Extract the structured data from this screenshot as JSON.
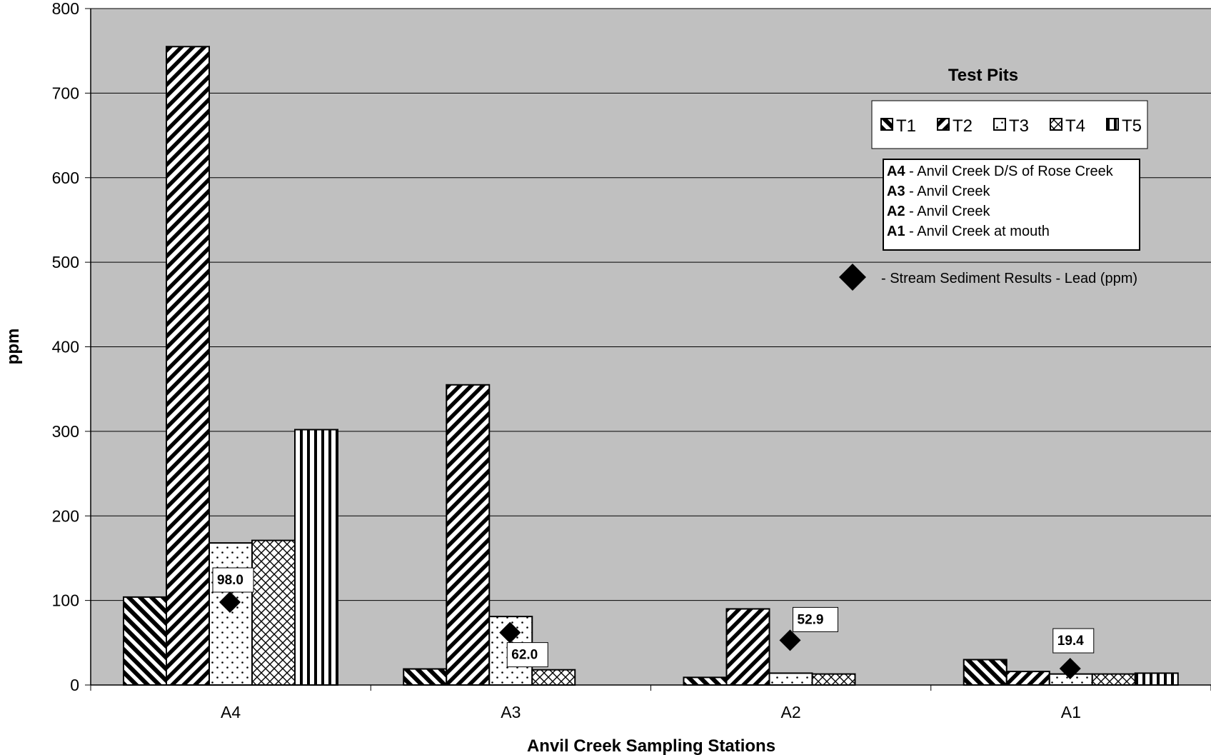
{
  "chart_data": {
    "type": "bar",
    "title": "",
    "xlabel": "Anvil Creek Sampling Stations",
    "ylabel": "ppm",
    "ylim": [
      0,
      800
    ],
    "yticks": [
      0,
      100,
      200,
      300,
      400,
      500,
      600,
      700,
      800
    ],
    "grid": true,
    "categories": [
      "A4",
      "A3",
      "A2",
      "A1"
    ],
    "series": [
      {
        "name": "T1",
        "values": [
          104,
          19,
          9,
          30
        ],
        "pattern": "diag-back"
      },
      {
        "name": "T2",
        "values": [
          755,
          355,
          90,
          16
        ],
        "pattern": "diag-fwd"
      },
      {
        "name": "T3",
        "values": [
          168,
          81,
          14,
          13
        ],
        "pattern": "dots"
      },
      {
        "name": "T4",
        "values": [
          171,
          18,
          13,
          13
        ],
        "pattern": "lattice"
      },
      {
        "name": "T5",
        "values": [
          302,
          null,
          null,
          14
        ],
        "pattern": "vertical"
      }
    ],
    "sediment": {
      "name": "- Stream Sediment Results - Lead (ppm)",
      "values": [
        98.0,
        62.0,
        52.9,
        19.4
      ],
      "labels": [
        "98.0",
        "62.0",
        "52.9",
        "19.4"
      ]
    },
    "legend": {
      "title": "Test Pits",
      "placement": "top-right"
    },
    "stations_key": [
      {
        "code": "A4",
        "desc": " - Anvil Creek D/S of Rose Creek"
      },
      {
        "code": "A3",
        "desc": " - Anvil Creek"
      },
      {
        "code": "A2",
        "desc": " - Anvil Creek"
      },
      {
        "code": "A1",
        "desc": " - Anvil Creek at mouth"
      }
    ],
    "colors": {
      "plot_background": "#c0c0c0",
      "bar_fill": "#ffffff",
      "ink": "#000000"
    }
  }
}
